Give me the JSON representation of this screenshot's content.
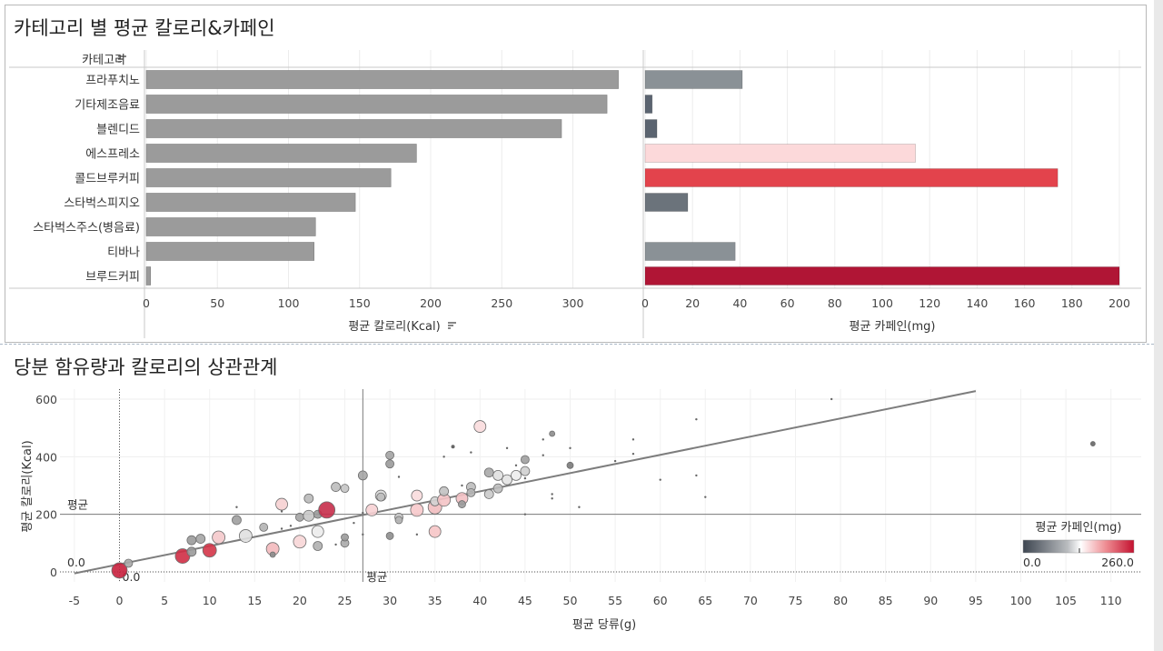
{
  "top_title": "카테고리 별 평균 칼로리&카페인",
  "bottom_title": "당분 함유량과 칼로리의 상관관계",
  "chart_data": [
    {
      "type": "bar",
      "orientation": "horizontal",
      "category_header": "카테고리",
      "categories": [
        "프라푸치노",
        "기타제조음료",
        "블렌디드",
        "에스프레소",
        "콜드브루커피",
        "스타벅스피지오",
        "스타벅스주스(병음료)",
        "티바나",
        "브루드커피"
      ],
      "values": [
        332,
        324,
        292,
        190,
        172,
        147,
        119,
        118,
        3
      ],
      "xlabel": "평균 칼로리(Kcal)",
      "xlim": [
        0,
        350
      ],
      "ticks": [
        0,
        50,
        100,
        150,
        200,
        250,
        300
      ],
      "bar_color": "#9b9b9b",
      "sort_icon": "sort-desc-icon"
    },
    {
      "type": "bar",
      "orientation": "horizontal",
      "values": [
        41,
        3,
        5,
        114,
        174,
        18,
        0,
        38,
        200
      ],
      "colors": [
        "#8a9196",
        "#5b6470",
        "#5b6470",
        "#fcd9da",
        "#e3434c",
        "#6b737b",
        "#ffffff",
        "#8a9196",
        "#b01535"
      ],
      "xlabel": "평균 카페인(mg)",
      "xlim": [
        0,
        205
      ],
      "ticks": [
        0,
        20,
        40,
        60,
        80,
        100,
        120,
        140,
        160,
        180,
        200
      ]
    },
    {
      "type": "scatter",
      "xlabel": "평균 당류(g)",
      "ylabel": "평균 칼로리(Kcal)",
      "xlim": [
        -7.5,
        113
      ],
      "ylim": [
        -5,
        610
      ],
      "xticks": [
        -5,
        0,
        5,
        10,
        15,
        20,
        25,
        30,
        35,
        40,
        45,
        50,
        55,
        60,
        65,
        70,
        75,
        80,
        85,
        90,
        95,
        100,
        105,
        110
      ],
      "yticks": [
        0,
        200,
        400,
        600
      ],
      "avg_x": 27,
      "avg_y": 200,
      "avg_label": "평균",
      "zero_label": "0.0",
      "trend": {
        "x0": -5,
        "y0": -5,
        "x1": 95,
        "y1": 628
      },
      "legend": {
        "title": "평균 카페인(mg)",
        "min_label": "0.0",
        "max_label": "260.0",
        "position": "bottom-right"
      },
      "points": [
        {
          "x": 0,
          "y": 5,
          "s": 8.5,
          "c": "#c8203d"
        },
        {
          "x": 1,
          "y": 30,
          "s": 4.5,
          "c": "#a8a8a8"
        },
        {
          "x": 7,
          "y": 55,
          "s": 8,
          "c": "#cf2e45"
        },
        {
          "x": 8,
          "y": 70,
          "s": 5,
          "c": "#9a9a9a"
        },
        {
          "x": 8,
          "y": 110,
          "s": 5,
          "c": "#9a9a9a"
        },
        {
          "x": 9,
          "y": 115,
          "s": 5,
          "c": "#a5a5a5"
        },
        {
          "x": 10,
          "y": 75,
          "s": 7.5,
          "c": "#d43548"
        },
        {
          "x": 11,
          "y": 120,
          "s": 7,
          "c": "#f4c9cb"
        },
        {
          "x": 13,
          "y": 180,
          "s": 5,
          "c": "#9e9e9e"
        },
        {
          "x": 13,
          "y": 225,
          "s": 1.2,
          "c": "#666666"
        },
        {
          "x": 14,
          "y": 125,
          "s": 7,
          "c": "#e0e0e0"
        },
        {
          "x": 16,
          "y": 155,
          "s": 4.5,
          "c": "#b2b2b2"
        },
        {
          "x": 17,
          "y": 80,
          "s": 7,
          "c": "#f3b9bc"
        },
        {
          "x": 17,
          "y": 60,
          "s": 3,
          "c": "#8c8c8c"
        },
        {
          "x": 18,
          "y": 235,
          "s": 6.5,
          "c": "#f6d0d2"
        },
        {
          "x": 18,
          "y": 210,
          "s": 1.2,
          "c": "#666666"
        },
        {
          "x": 18,
          "y": 150,
          "s": 1.2,
          "c": "#666666"
        },
        {
          "x": 19,
          "y": 160,
          "s": 1.2,
          "c": "#666666"
        },
        {
          "x": 20,
          "y": 105,
          "s": 7,
          "c": "#f7d6d7"
        },
        {
          "x": 20,
          "y": 190,
          "s": 4.5,
          "c": "#a3a3a3"
        },
        {
          "x": 21,
          "y": 255,
          "s": 5,
          "c": "#b9b9b9"
        },
        {
          "x": 21,
          "y": 195,
          "s": 6,
          "c": "#c8c8c8"
        },
        {
          "x": 22,
          "y": 90,
          "s": 5,
          "c": "#b0b0b0"
        },
        {
          "x": 22,
          "y": 140,
          "s": 6.5,
          "c": "#ececec"
        },
        {
          "x": 22,
          "y": 200,
          "s": 4.5,
          "c": "#9a9a9a"
        },
        {
          "x": 23,
          "y": 215,
          "s": 9,
          "c": "#c72e4a"
        },
        {
          "x": 24,
          "y": 295,
          "s": 5,
          "c": "#bdbdbd"
        },
        {
          "x": 24,
          "y": 95,
          "s": 1.2,
          "c": "#666666"
        },
        {
          "x": 25,
          "y": 100,
          "s": 4.5,
          "c": "#aaaaaa"
        },
        {
          "x": 25,
          "y": 120,
          "s": 4,
          "c": "#9a9a9a"
        },
        {
          "x": 25,
          "y": 290,
          "s": 4.5,
          "c": "#c4c4c4"
        },
        {
          "x": 26,
          "y": 170,
          "s": 1.2,
          "c": "#666666"
        },
        {
          "x": 27,
          "y": 335,
          "s": 5,
          "c": "#a5a5a5"
        },
        {
          "x": 27,
          "y": 205,
          "s": 1.2,
          "c": "#666666"
        },
        {
          "x": 27,
          "y": 130,
          "s": 1.2,
          "c": "#666666"
        },
        {
          "x": 28,
          "y": 215,
          "s": 6.5,
          "c": "#f7d2d4"
        },
        {
          "x": 29,
          "y": 265,
          "s": 6,
          "c": "#d9d9d9"
        },
        {
          "x": 29,
          "y": 260,
          "s": 4.5,
          "c": "#bdbdbd"
        },
        {
          "x": 30,
          "y": 405,
          "s": 4.5,
          "c": "#a3a3a3"
        },
        {
          "x": 30,
          "y": 375,
          "s": 4.5,
          "c": "#9a9a9a"
        },
        {
          "x": 30,
          "y": 125,
          "s": 4,
          "c": "#8e8e8e"
        },
        {
          "x": 31,
          "y": 190,
          "s": 4.5,
          "c": "#c6c6c6"
        },
        {
          "x": 31,
          "y": 180,
          "s": 4,
          "c": "#b5b5b5"
        },
        {
          "x": 31,
          "y": 330,
          "s": 1.2,
          "c": "#666666"
        },
        {
          "x": 33,
          "y": 215,
          "s": 7,
          "c": "#f7c9cb"
        },
        {
          "x": 33,
          "y": 265,
          "s": 6,
          "c": "#f8dcdd"
        },
        {
          "x": 33,
          "y": 130,
          "s": 1.2,
          "c": "#666666"
        },
        {
          "x": 35,
          "y": 225,
          "s": 7.5,
          "c": "#f1bcbf"
        },
        {
          "x": 35,
          "y": 140,
          "s": 6.5,
          "c": "#f6c5c7"
        },
        {
          "x": 35,
          "y": 245,
          "s": 5,
          "c": "#d3d3d3"
        },
        {
          "x": 36,
          "y": 250,
          "s": 7,
          "c": "#f4c3c5"
        },
        {
          "x": 36,
          "y": 280,
          "s": 5,
          "c": "#c2c2c2"
        },
        {
          "x": 36,
          "y": 400,
          "s": 1.2,
          "c": "#666666"
        },
        {
          "x": 37,
          "y": 435,
          "s": 2,
          "c": "#666666"
        },
        {
          "x": 38,
          "y": 255,
          "s": 6.5,
          "c": "#f3c1c4"
        },
        {
          "x": 38,
          "y": 235,
          "s": 4,
          "c": "#9a9a9a"
        },
        {
          "x": 38,
          "y": 300,
          "s": 1.2,
          "c": "#666666"
        },
        {
          "x": 39,
          "y": 295,
          "s": 5,
          "c": "#bcbcbc"
        },
        {
          "x": 39,
          "y": 275,
          "s": 4.5,
          "c": "#b5b5b5"
        },
        {
          "x": 39,
          "y": 415,
          "s": 1.2,
          "c": "#666666"
        },
        {
          "x": 40,
          "y": 505,
          "s": 6.5,
          "c": "#f9dcdd"
        },
        {
          "x": 41,
          "y": 270,
          "s": 5,
          "c": "#cacaca"
        },
        {
          "x": 41,
          "y": 345,
          "s": 5,
          "c": "#a8a8a8"
        },
        {
          "x": 42,
          "y": 290,
          "s": 5,
          "c": "#bdbdbd"
        },
        {
          "x": 42,
          "y": 335,
          "s": 5.5,
          "c": "#e0e0e0"
        },
        {
          "x": 43,
          "y": 320,
          "s": 5.5,
          "c": "#e3e3e3"
        },
        {
          "x": 43,
          "y": 430,
          "s": 1.2,
          "c": "#666666"
        },
        {
          "x": 44,
          "y": 335,
          "s": 5.5,
          "c": "#ededed"
        },
        {
          "x": 44,
          "y": 370,
          "s": 1.2,
          "c": "#666666"
        },
        {
          "x": 45,
          "y": 390,
          "s": 4.5,
          "c": "#9e9e9e"
        },
        {
          "x": 45,
          "y": 350,
          "s": 5,
          "c": "#cfcfcf"
        },
        {
          "x": 45,
          "y": 325,
          "s": 1.2,
          "c": "#666666"
        },
        {
          "x": 45,
          "y": 200,
          "s": 1.2,
          "c": "#666666"
        },
        {
          "x": 47,
          "y": 405,
          "s": 1.2,
          "c": "#666666"
        },
        {
          "x": 47,
          "y": 460,
          "s": 1.2,
          "c": "#666666"
        },
        {
          "x": 48,
          "y": 480,
          "s": 3,
          "c": "#8c8c8c"
        },
        {
          "x": 48,
          "y": 270,
          "s": 1.2,
          "c": "#666666"
        },
        {
          "x": 48,
          "y": 255,
          "s": 1.2,
          "c": "#666666"
        },
        {
          "x": 50,
          "y": 370,
          "s": 3.5,
          "c": "#7a7a7a"
        },
        {
          "x": 50,
          "y": 430,
          "s": 1.2,
          "c": "#666666"
        },
        {
          "x": 51,
          "y": 225,
          "s": 1.2,
          "c": "#666666"
        },
        {
          "x": 55,
          "y": 385,
          "s": 1.2,
          "c": "#666666"
        },
        {
          "x": 57,
          "y": 460,
          "s": 1.2,
          "c": "#666666"
        },
        {
          "x": 57,
          "y": 410,
          "s": 1.2,
          "c": "#666666"
        },
        {
          "x": 60,
          "y": 320,
          "s": 1.2,
          "c": "#666666"
        },
        {
          "x": 64,
          "y": 530,
          "s": 1.2,
          "c": "#666666"
        },
        {
          "x": 64,
          "y": 335,
          "s": 1.2,
          "c": "#666666"
        },
        {
          "x": 65,
          "y": 260,
          "s": 1.2,
          "c": "#666666"
        },
        {
          "x": 79,
          "y": 600,
          "s": 1.2,
          "c": "#666666"
        },
        {
          "x": 108,
          "y": 445,
          "s": 2.5,
          "c": "#666666"
        }
      ]
    }
  ]
}
